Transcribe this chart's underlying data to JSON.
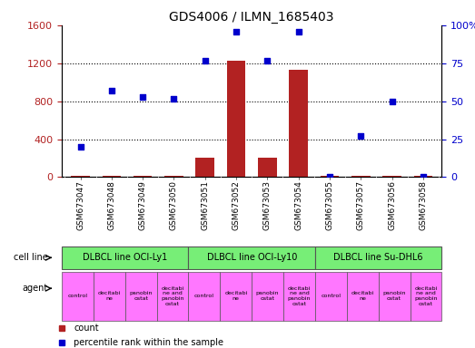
{
  "title": "GDS4006 / ILMN_1685403",
  "samples": [
    "GSM673047",
    "GSM673048",
    "GSM673049",
    "GSM673050",
    "GSM673051",
    "GSM673052",
    "GSM673053",
    "GSM673054",
    "GSM673055",
    "GSM673057",
    "GSM673056",
    "GSM673058"
  ],
  "counts": [
    15,
    15,
    15,
    15,
    210,
    1230,
    210,
    1130,
    10,
    15,
    15,
    10
  ],
  "percentile_ranks": [
    20,
    57,
    53,
    52,
    77,
    96,
    77,
    96,
    0,
    27,
    50,
    0
  ],
  "bar_color": "#b22222",
  "dot_color": "#0000cc",
  "ylim_left": [
    0,
    1600
  ],
  "ylim_right": [
    0,
    100
  ],
  "yticks_left": [
    0,
    400,
    800,
    1200,
    1600
  ],
  "yticks_right": [
    0,
    25,
    50,
    75,
    100
  ],
  "yticklabels_left": [
    "0",
    "400",
    "800",
    "1200",
    "1600"
  ],
  "yticklabels_right": [
    "0",
    "25",
    "50",
    "75",
    "100%"
  ],
  "cell_groups": [
    {
      "label": "DLBCL line OCI-Ly1",
      "start": 0,
      "end": 4
    },
    {
      "label": "DLBCL line OCI-Ly10",
      "start": 4,
      "end": 8
    },
    {
      "label": "DLBCL line Su-DHL6",
      "start": 8,
      "end": 12
    }
  ],
  "agents": [
    "control",
    "decitabi\nne",
    "panobin\nostat",
    "decitabi\nne and\npanobin\nostat",
    "control",
    "decitabi\nne",
    "panobin\nostat",
    "decitabi\nne and\npanobin\nostat",
    "control",
    "decitabi\nne",
    "panobin\nostat",
    "decitabi\nne and\npanobin\nostat"
  ],
  "agent_color": "#ff77ff",
  "cell_line_color": "#77ee77",
  "xticklabel_bg": "#cccccc",
  "legend_count_color": "#b22222",
  "legend_pct_color": "#0000cc",
  "title_fontsize": 10
}
